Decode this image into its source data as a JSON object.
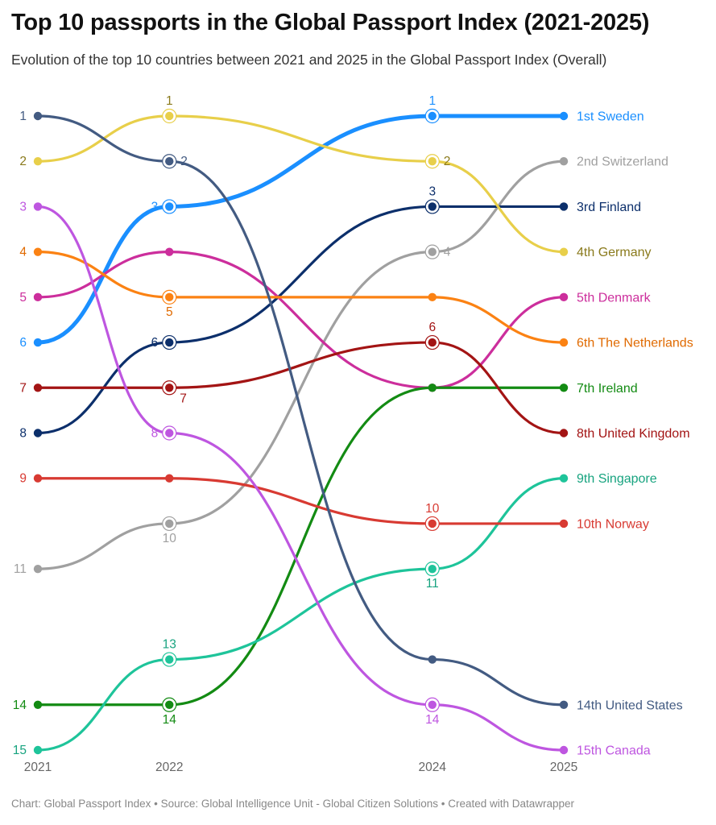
{
  "title": "Top 10 passports in the Global Passport Index (2021-2025)",
  "subtitle": "Evolution of the top 10 countries between 2021 and 2025 in the Global Passport Index (Overall)",
  "footer": "Chart: Global Passport Index • Source: Global Intelligence Unit - Global Citizen Solutions • Created with Datawrapper",
  "chart_data": {
    "type": "line",
    "subtype": "bump",
    "x": [
      2021,
      2022,
      2024,
      2025
    ],
    "y_axis": "rank (inverted, 1 at top)",
    "ylim": [
      1,
      15
    ],
    "grid": false,
    "legend": "end labels at right",
    "series": [
      {
        "name": "Sweden",
        "end_label": "1st Sweden",
        "color": "#1a8fff",
        "values": [
          6,
          3,
          1,
          1
        ]
      },
      {
        "name": "Switzerland",
        "end_label": "2nd Switzerland",
        "color": "#a0a0a0",
        "values": [
          11,
          10,
          4,
          2
        ]
      },
      {
        "name": "Finland",
        "end_label": "3rd Finland",
        "color": "#0c2f6b",
        "values": [
          8,
          6,
          3,
          3
        ]
      },
      {
        "name": "Germany",
        "end_label": "4th Germany",
        "color": "#e8cf4a",
        "label_color": "#8a7a1c",
        "values": [
          2,
          1,
          2,
          4
        ]
      },
      {
        "name": "Denmark",
        "end_label": "5th Denmark",
        "color": "#cc2e9c",
        "values": [
          5,
          4,
          7,
          5
        ]
      },
      {
        "name": "The Netherlands",
        "end_label": "6th The Netherlands",
        "color": "#fb8213",
        "label_color": "#e06a00",
        "values": [
          4,
          5,
          5,
          6
        ]
      },
      {
        "name": "Ireland",
        "end_label": "7th Ireland",
        "color": "#138b13",
        "values": [
          14,
          14,
          7,
          7
        ]
      },
      {
        "name": "United Kingdom",
        "end_label": "8th United Kingdom",
        "color": "#a31414",
        "values": [
          7,
          7,
          6,
          8
        ]
      },
      {
        "name": "Singapore",
        "end_label": "9th Singapore",
        "color": "#1ec49a",
        "label_color": "#17a37f",
        "values": [
          15,
          13,
          11,
          9
        ]
      },
      {
        "name": "Norway",
        "end_label": "10th Norway",
        "color": "#d83a32",
        "values": [
          9,
          9,
          10,
          10
        ]
      },
      {
        "name": "United States",
        "end_label": "14th United States",
        "color": "#435b82",
        "values": [
          1,
          2,
          13,
          14
        ]
      },
      {
        "name": "Canada",
        "end_label": "15th Canada",
        "color": "#be56e0",
        "values": [
          3,
          8,
          14,
          15
        ]
      }
    ],
    "point_labels": [
      {
        "series": "United States",
        "x": 2021,
        "text": "1",
        "pos": "left"
      },
      {
        "series": "Germany",
        "x": 2021,
        "text": "2",
        "pos": "left"
      },
      {
        "series": "Canada",
        "x": 2021,
        "text": "3",
        "pos": "left"
      },
      {
        "series": "The Netherlands",
        "x": 2021,
        "text": "4",
        "pos": "left"
      },
      {
        "series": "Denmark",
        "x": 2021,
        "text": "5",
        "pos": "left"
      },
      {
        "series": "Sweden",
        "x": 2021,
        "text": "6",
        "pos": "left"
      },
      {
        "series": "United Kingdom",
        "x": 2021,
        "text": "7",
        "pos": "left"
      },
      {
        "series": "Finland",
        "x": 2021,
        "text": "8",
        "pos": "left"
      },
      {
        "series": "Norway",
        "x": 2021,
        "text": "9",
        "pos": "left"
      },
      {
        "series": "Switzerland",
        "x": 2021,
        "text": "11",
        "pos": "left"
      },
      {
        "series": "Ireland",
        "x": 2021,
        "text": "14",
        "pos": "left"
      },
      {
        "series": "Singapore",
        "x": 2021,
        "text": "15",
        "pos": "left"
      },
      {
        "series": "Germany",
        "x": 2022,
        "text": "1",
        "pos": "above"
      },
      {
        "series": "United States",
        "x": 2022,
        "text": "2",
        "pos": "right"
      },
      {
        "series": "Sweden",
        "x": 2022,
        "text": "3",
        "pos": "left"
      },
      {
        "series": "The Netherlands",
        "x": 2022,
        "text": "5",
        "pos": "below"
      },
      {
        "series": "Finland",
        "x": 2022,
        "text": "6",
        "pos": "left"
      },
      {
        "series": "United Kingdom",
        "x": 2022,
        "text": "7",
        "pos": "belowright"
      },
      {
        "series": "Canada",
        "x": 2022,
        "text": "8",
        "pos": "left"
      },
      {
        "series": "Switzerland",
        "x": 2022,
        "text": "10",
        "pos": "below"
      },
      {
        "series": "Singapore",
        "x": 2022,
        "text": "13",
        "pos": "above"
      },
      {
        "series": "Ireland",
        "x": 2022,
        "text": "14",
        "pos": "below"
      },
      {
        "series": "Sweden",
        "x": 2024,
        "text": "1",
        "pos": "above"
      },
      {
        "series": "Germany",
        "x": 2024,
        "text": "2",
        "pos": "right"
      },
      {
        "series": "Finland",
        "x": 2024,
        "text": "3",
        "pos": "above"
      },
      {
        "series": "Switzerland",
        "x": 2024,
        "text": "4",
        "pos": "right"
      },
      {
        "series": "United Kingdom",
        "x": 2024,
        "text": "6",
        "pos": "above"
      },
      {
        "series": "Norway",
        "x": 2024,
        "text": "10",
        "pos": "above"
      },
      {
        "series": "Singapore",
        "x": 2024,
        "text": "11",
        "pos": "below"
      },
      {
        "series": "Canada",
        "x": 2024,
        "text": "14",
        "pos": "below"
      }
    ],
    "ringed_points": [
      {
        "series": "Germany",
        "x": 2022
      },
      {
        "series": "United States",
        "x": 2022
      },
      {
        "series": "Sweden",
        "x": 2022
      },
      {
        "series": "The Netherlands",
        "x": 2022
      },
      {
        "series": "Finland",
        "x": 2022
      },
      {
        "series": "United Kingdom",
        "x": 2022
      },
      {
        "series": "Canada",
        "x": 2022
      },
      {
        "series": "Switzerland",
        "x": 2022
      },
      {
        "series": "Singapore",
        "x": 2022
      },
      {
        "series": "Ireland",
        "x": 2022
      },
      {
        "series": "Sweden",
        "x": 2024
      },
      {
        "series": "Germany",
        "x": 2024
      },
      {
        "series": "Finland",
        "x": 2024
      },
      {
        "series": "Switzerland",
        "x": 2024
      },
      {
        "series": "United Kingdom",
        "x": 2024
      },
      {
        "series": "Norway",
        "x": 2024
      },
      {
        "series": "Singapore",
        "x": 2024
      },
      {
        "series": "Canada",
        "x": 2024
      }
    ]
  }
}
